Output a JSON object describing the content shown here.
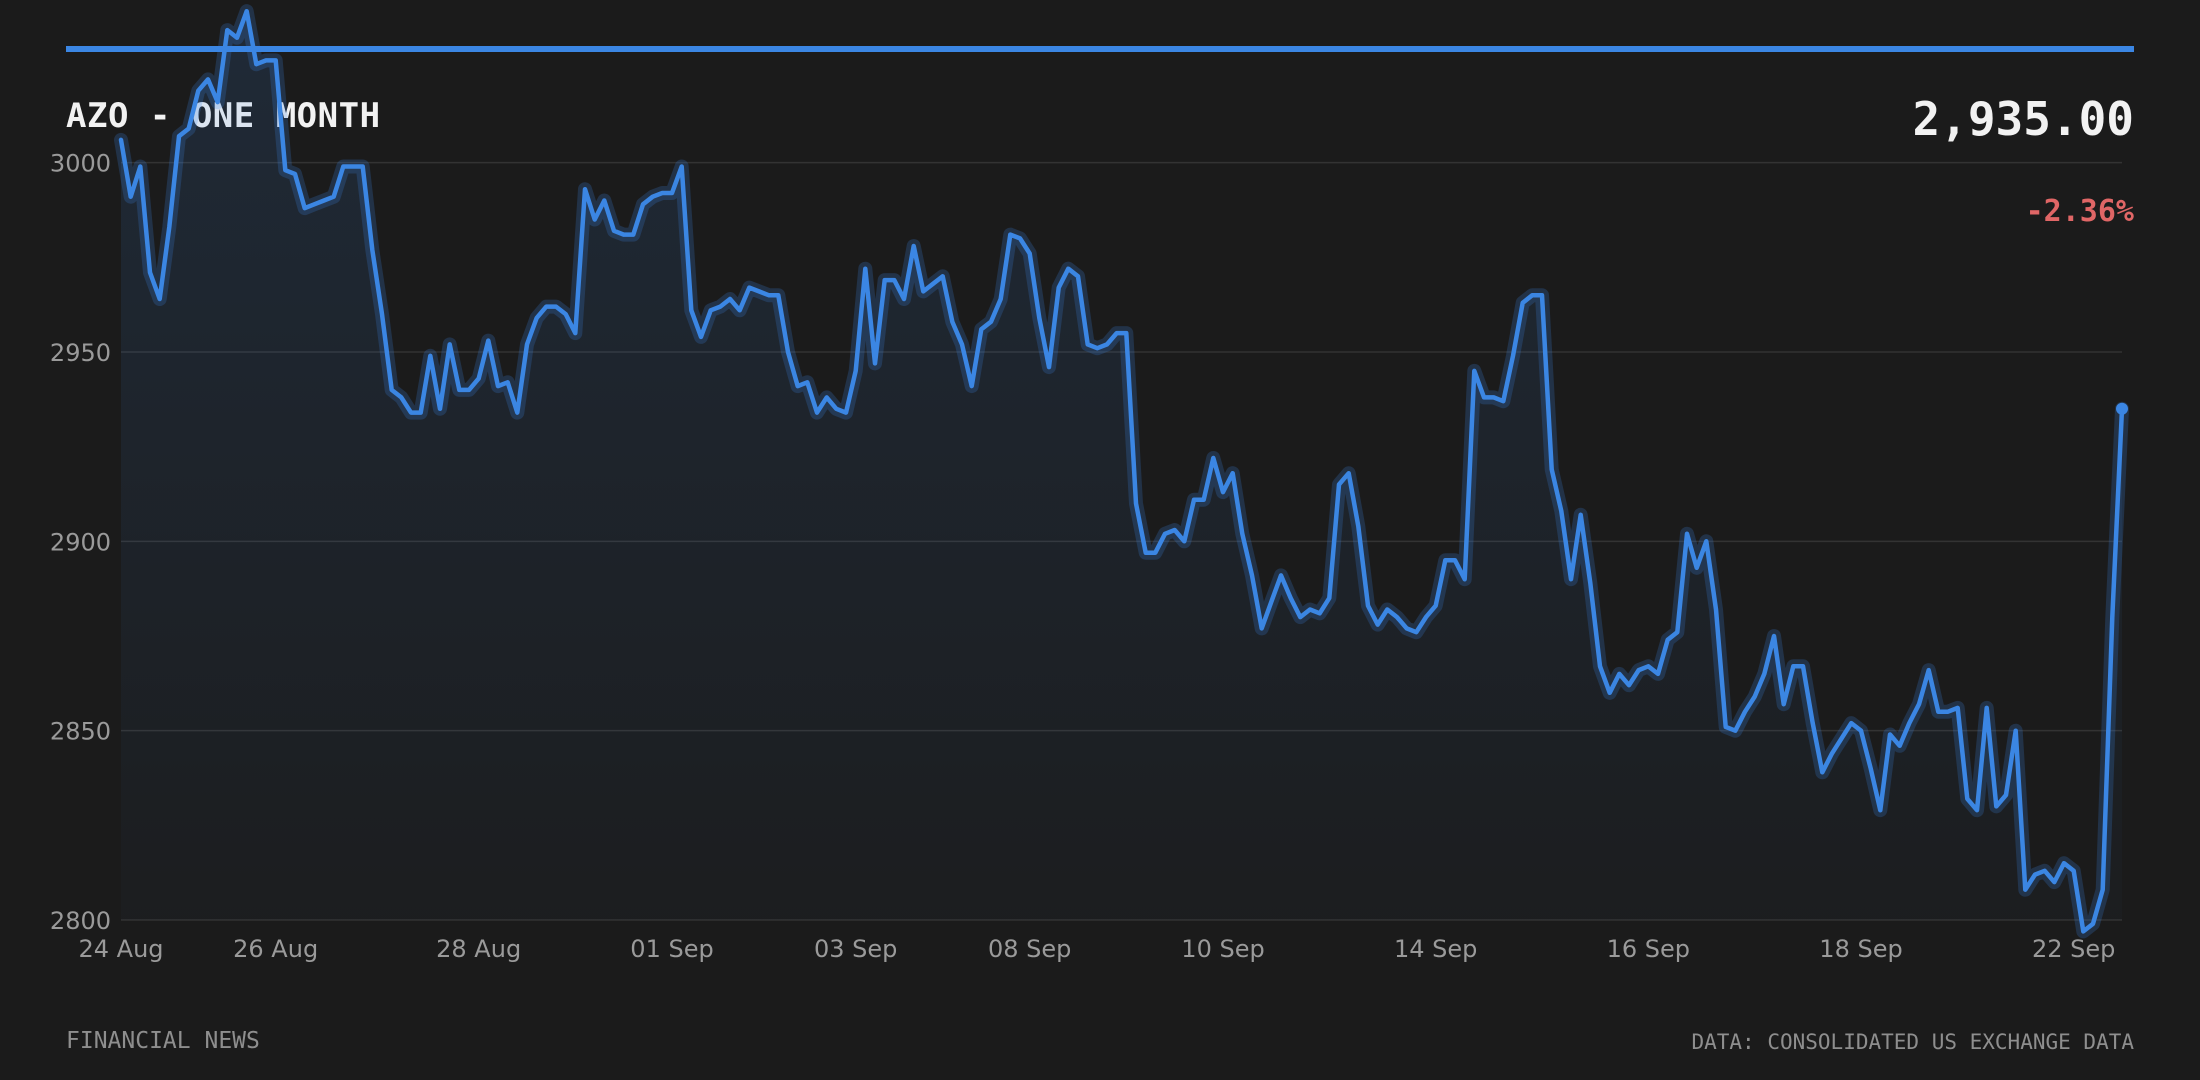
{
  "header": {
    "title": "AZO - ONE MONTH",
    "price": "2,935.00",
    "change": "-2.36%",
    "accent_color": "#3b86e3",
    "change_color": "#e06666"
  },
  "footer": {
    "source_left": "FINANCIAL NEWS",
    "source_right": "DATA: CONSOLIDATED US EXCHANGE DATA"
  },
  "chart_data": {
    "type": "area",
    "title": "AZO - ONE MONTH",
    "xlabel": "",
    "ylabel": "",
    "ylim": [
      2800,
      3040
    ],
    "yticks": [
      2800,
      2850,
      2900,
      2950,
      3000
    ],
    "grid": true,
    "x_tick_labels": [
      "24 Aug",
      "26 Aug",
      "28 Aug",
      "01 Sep",
      "03 Sep",
      "08 Sep",
      "10 Sep",
      "14 Sep",
      "16 Sep",
      "18 Sep",
      "22 Sep"
    ],
    "series": [
      {
        "values": [
          3006,
          2991,
          2999,
          2971,
          2964,
          2983,
          3007,
          3009,
          3019,
          3022,
          3016,
          3035,
          3033,
          3040,
          3026,
          3027,
          3027,
          2998,
          2997,
          2988,
          2989,
          2990,
          2991,
          2999,
          2999,
          2999,
          2977,
          2960,
          2940,
          2938,
          2934,
          2934,
          2949,
          2935,
          2952,
          2940,
          2940,
          2943,
          2953,
          2941,
          2942,
          2934,
          2952,
          2959,
          2962,
          2962,
          2960,
          2955,
          2993,
          2985,
          2990,
          2982,
          2981,
          2981,
          2989,
          2991,
          2992,
          2992,
          2999,
          2961,
          2954,
          2961,
          2962,
          2964,
          2961,
          2967,
          2966,
          2965,
          2965,
          2950,
          2941,
          2942,
          2934,
          2938,
          2935,
          2934,
          2945,
          2972,
          2947,
          2969,
          2969,
          2964,
          2978,
          2966,
          2968,
          2970,
          2958,
          2952,
          2941,
          2956,
          2958,
          2964,
          2981,
          2980,
          2976,
          2959,
          2946,
          2967,
          2972,
          2970,
          2952,
          2951,
          2952,
          2955,
          2955,
          2910,
          2897,
          2897,
          2902,
          2903,
          2900,
          2911,
          2911,
          2922,
          2913,
          2918,
          2902,
          2891,
          2877,
          2884,
          2891,
          2885,
          2880,
          2882,
          2881,
          2885,
          2915,
          2918,
          2904,
          2883,
          2878,
          2882,
          2880,
          2877,
          2876,
          2880,
          2883,
          2895,
          2895,
          2890,
          2945,
          2938,
          2938,
          2937,
          2949,
          2963,
          2965,
          2965,
          2919,
          2908,
          2890,
          2907,
          2889,
          2867,
          2860,
          2865,
          2862,
          2866,
          2867,
          2865,
          2874,
          2876,
          2902,
          2893,
          2900,
          2882,
          2851,
          2850,
          2855,
          2859,
          2865,
          2875,
          2857,
          2867,
          2867,
          2852,
          2839,
          2844,
          2848,
          2852,
          2850,
          2840,
          2829,
          2849,
          2846,
          2852,
          2857,
          2866,
          2855,
          2855,
          2856,
          2832,
          2829,
          2856,
          2830,
          2833,
          2850,
          2808,
          2812,
          2813,
          2810,
          2815,
          2813,
          2797,
          2799,
          2808,
          2880,
          2935
        ]
      }
    ]
  }
}
